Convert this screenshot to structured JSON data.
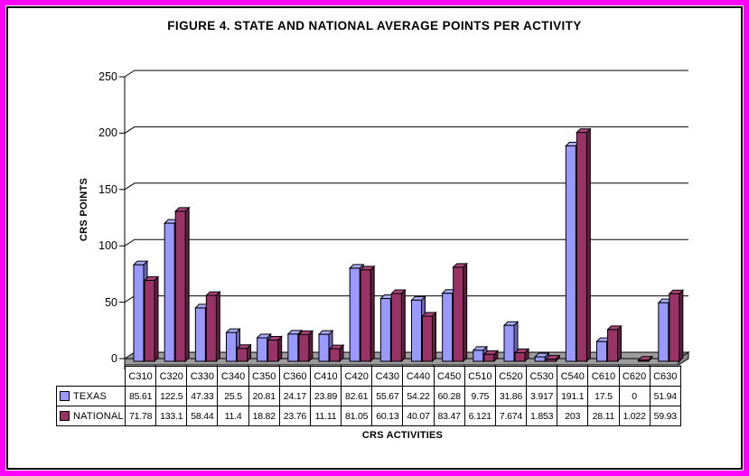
{
  "frame": {
    "outer_border_color": "#FF00FF",
    "inner_border_color": "#000000",
    "background": "#FFFFFF"
  },
  "chart_data": {
    "type": "bar",
    "style": "3d-column",
    "title": "FIGURE 4. STATE AND NATIONAL AVERAGE POINTS PER ACTIVITY",
    "xlabel": "CRS ACTIVITIES",
    "ylabel": "CRS POINTS",
    "ylim": [
      0,
      250
    ],
    "yticks": [
      0,
      50,
      100,
      150,
      200,
      250
    ],
    "grid": true,
    "legend_position": "data-table-left",
    "floor_colors": {
      "top": "#9C9C9C",
      "front": "#9C9C9C",
      "side": "#878787"
    },
    "categories": [
      "C310",
      "C320",
      "C330",
      "C340",
      "C350",
      "C360",
      "C410",
      "C420",
      "C430",
      "C440",
      "C450",
      "C510",
      "C520",
      "C530",
      "C540",
      "C610",
      "C620",
      "C630"
    ],
    "series": [
      {
        "name": "TEXAS",
        "colors": {
          "front": "#9999FF",
          "top": "#ADADFF",
          "side": "#6868B4"
        },
        "values": [
          85.61,
          122.5,
          47.33,
          25.5,
          20.81,
          24.17,
          23.89,
          82.61,
          55.67,
          54.22,
          60.28,
          9.75,
          31.86,
          3.917,
          191.1,
          17.5,
          0,
          51.94
        ]
      },
      {
        "name": "NATIONAL",
        "colors": {
          "front": "#993366",
          "top": "#AA4477",
          "side": "#5E1F3F"
        },
        "values": [
          71.78,
          133.1,
          58.44,
          11.4,
          18.82,
          23.76,
          11.11,
          81.05,
          60.13,
          40.07,
          83.47,
          6.121,
          7.674,
          1.853,
          203,
          28.11,
          1.022,
          59.93
        ]
      }
    ]
  }
}
